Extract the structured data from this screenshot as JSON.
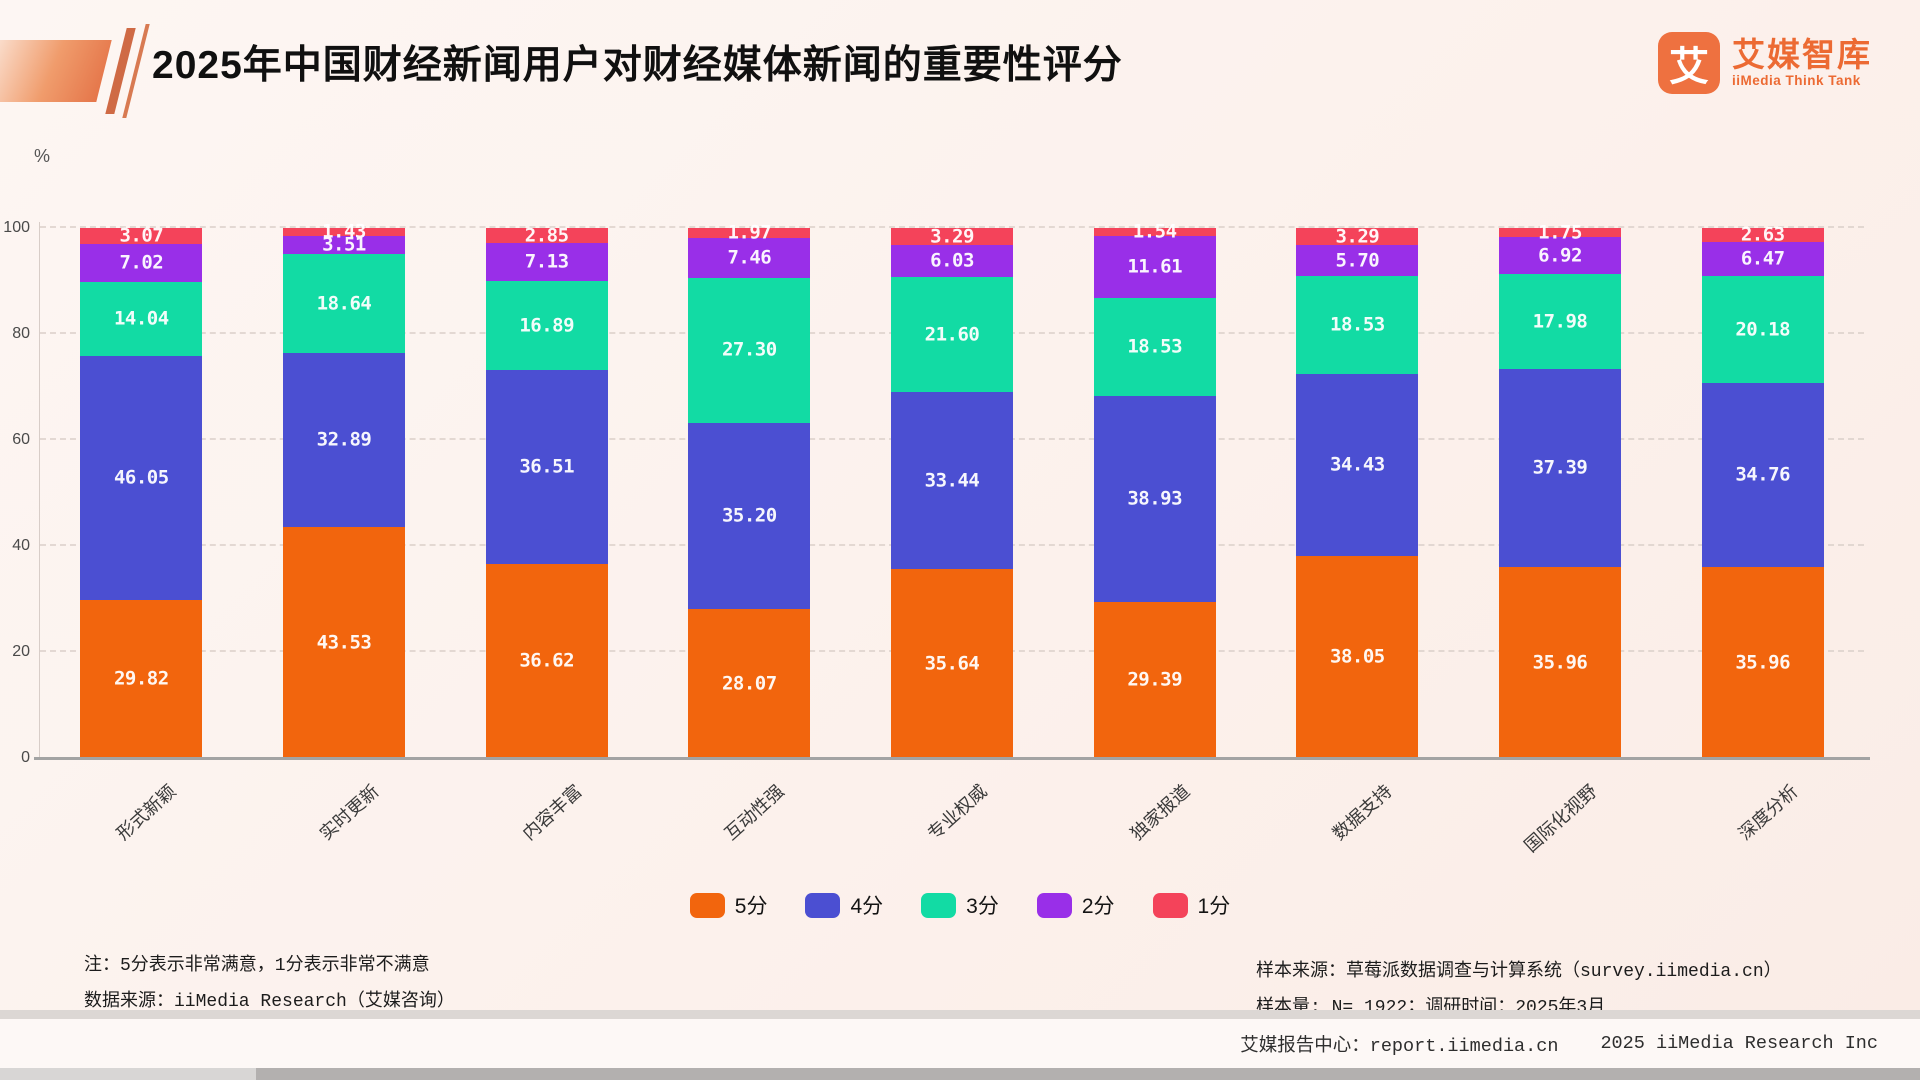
{
  "header": {
    "title": "2025年中国财经新闻用户对财经媒体新闻的重要性评分",
    "logo": {
      "glyph": "艾",
      "name_cn": "艾媒智库",
      "name_en": "iiMedia Think Tank"
    }
  },
  "chart_data": {
    "type": "bar",
    "stacked": true,
    "title": "2025年中国财经新闻用户对财经媒体新闻的重要性评分",
    "xlabel": "",
    "ylabel": "%",
    "ylim": [
      0,
      100
    ],
    "yticks": [
      0,
      20,
      40,
      60,
      80,
      100
    ],
    "grid": "dashed-horizontal",
    "legend_position": "bottom",
    "value_label_decimals": 2,
    "categories": [
      "形式新颖",
      "实时更新",
      "内容丰富",
      "互动性强",
      "专业权威",
      "独家报道",
      "数据支持",
      "国际化视野",
      "深度分析"
    ],
    "series": [
      {
        "name": "5分",
        "color": "#f2650d",
        "values": [
          29.82,
          43.53,
          36.62,
          28.07,
          35.64,
          29.39,
          38.05,
          35.96,
          35.96
        ]
      },
      {
        "name": "4分",
        "color": "#4b4fd2",
        "values": [
          46.05,
          32.89,
          36.51,
          35.2,
          33.44,
          38.93,
          34.43,
          37.39,
          34.76
        ]
      },
      {
        "name": "3分",
        "color": "#12dba4",
        "values": [
          14.04,
          18.64,
          16.89,
          27.3,
          21.6,
          18.53,
          18.53,
          17.98,
          20.18
        ]
      },
      {
        "name": "2分",
        "color": "#992fe8",
        "values": [
          7.02,
          3.51,
          7.13,
          7.46,
          6.03,
          11.61,
          5.7,
          6.92,
          6.47
        ]
      },
      {
        "name": "1分",
        "color": "#f4435a",
        "values": [
          3.07,
          1.43,
          2.85,
          1.97,
          3.29,
          1.54,
          3.29,
          1.75,
          2.63
        ]
      }
    ]
  },
  "footnotes": {
    "note_line1": "注：5分表示非常满意，1分表示非常不满意",
    "note_line2": "数据来源：iiMedia Research（艾媒咨询）",
    "sample_source": "样本来源：草莓派数据调查与计算系统（survey.iimedia.cn）",
    "sample_size": "样本量: N= 1922；调研时间：2025年3月"
  },
  "footer": {
    "report_center": "艾媒报告中心：report.iimedia.cn",
    "copyright": "2025 iiMedia Research Inc"
  }
}
